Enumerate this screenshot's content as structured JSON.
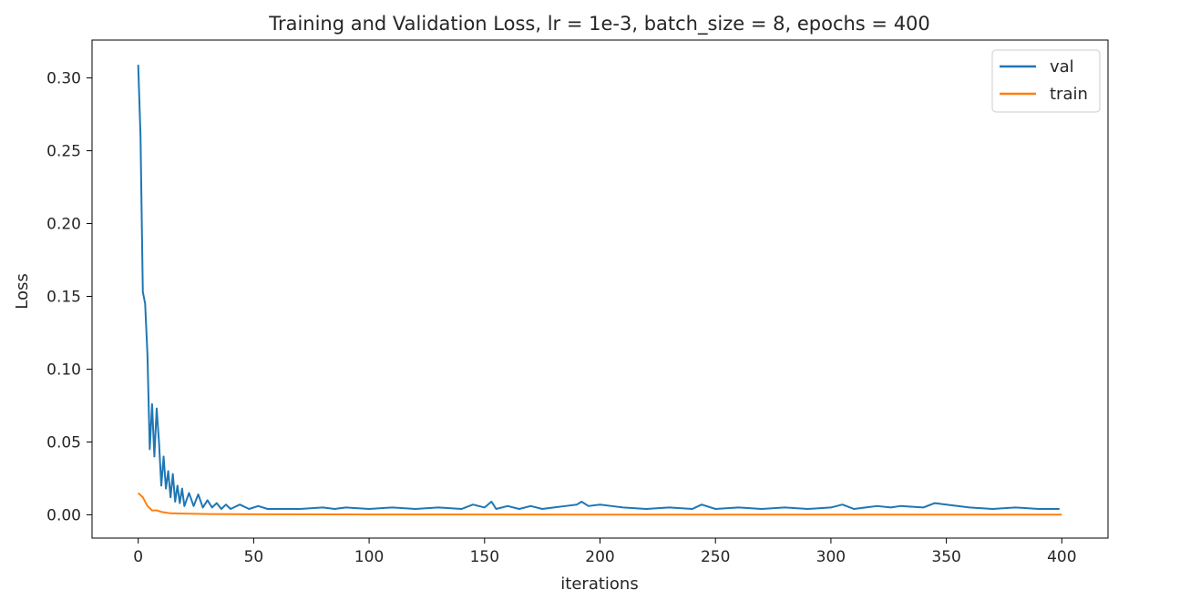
{
  "chart_data": {
    "type": "line",
    "title": "Training and Validation Loss, lr = 1e-3, batch_size = 8, epochs = 400",
    "xlabel": "iterations",
    "ylabel": "Loss",
    "xlim": [
      -20,
      420
    ],
    "ylim": [
      -0.016,
      0.326
    ],
    "xticks": [
      0,
      50,
      100,
      150,
      200,
      250,
      300,
      350,
      400
    ],
    "yticks": [
      0.0,
      0.05,
      0.1,
      0.15,
      0.2,
      0.25,
      0.3
    ],
    "ytick_labels": [
      "0.00",
      "0.05",
      "0.10",
      "0.15",
      "0.20",
      "0.25",
      "0.30"
    ],
    "grid": false,
    "legend_position": "top-right",
    "series": [
      {
        "name": "val",
        "color": "#1f77b4",
        "x": [
          0,
          1,
          2,
          3,
          4,
          5,
          6,
          7,
          8,
          9,
          10,
          11,
          12,
          13,
          14,
          15,
          16,
          17,
          18,
          19,
          20,
          22,
          24,
          26,
          28,
          30,
          32,
          34,
          36,
          38,
          40,
          44,
          48,
          52,
          56,
          60,
          70,
          80,
          85,
          90,
          100,
          110,
          120,
          130,
          140,
          145,
          150,
          153,
          155,
          160,
          165,
          170,
          175,
          180,
          185,
          190,
          192,
          195,
          200,
          205,
          210,
          220,
          230,
          240,
          244,
          250,
          260,
          270,
          280,
          290,
          300,
          305,
          310,
          315,
          320,
          326,
          330,
          340,
          345,
          350,
          360,
          370,
          380,
          390,
          399
        ],
        "values": [
          0.309,
          0.26,
          0.153,
          0.145,
          0.11,
          0.045,
          0.076,
          0.04,
          0.073,
          0.05,
          0.02,
          0.04,
          0.018,
          0.03,
          0.012,
          0.028,
          0.009,
          0.02,
          0.008,
          0.018,
          0.006,
          0.015,
          0.006,
          0.014,
          0.005,
          0.01,
          0.005,
          0.008,
          0.004,
          0.007,
          0.004,
          0.007,
          0.004,
          0.006,
          0.004,
          0.004,
          0.004,
          0.005,
          0.004,
          0.005,
          0.004,
          0.005,
          0.004,
          0.005,
          0.004,
          0.007,
          0.005,
          0.009,
          0.004,
          0.006,
          0.004,
          0.006,
          0.004,
          0.005,
          0.006,
          0.007,
          0.009,
          0.006,
          0.007,
          0.006,
          0.005,
          0.004,
          0.005,
          0.004,
          0.007,
          0.004,
          0.005,
          0.004,
          0.005,
          0.004,
          0.005,
          0.007,
          0.004,
          0.005,
          0.006,
          0.005,
          0.006,
          0.005,
          0.008,
          0.007,
          0.005,
          0.004,
          0.005,
          0.004,
          0.004
        ]
      },
      {
        "name": "train",
        "color": "#ff7f0e",
        "x": [
          0,
          2,
          4,
          6,
          8,
          10,
          14,
          20,
          30,
          50,
          100,
          200,
          300,
          400
        ],
        "values": [
          0.015,
          0.012,
          0.006,
          0.003,
          0.003,
          0.002,
          0.001,
          0.0008,
          0.0005,
          0.0003,
          0.0002,
          0.0001,
          0.0001,
          0.0001
        ]
      }
    ]
  }
}
